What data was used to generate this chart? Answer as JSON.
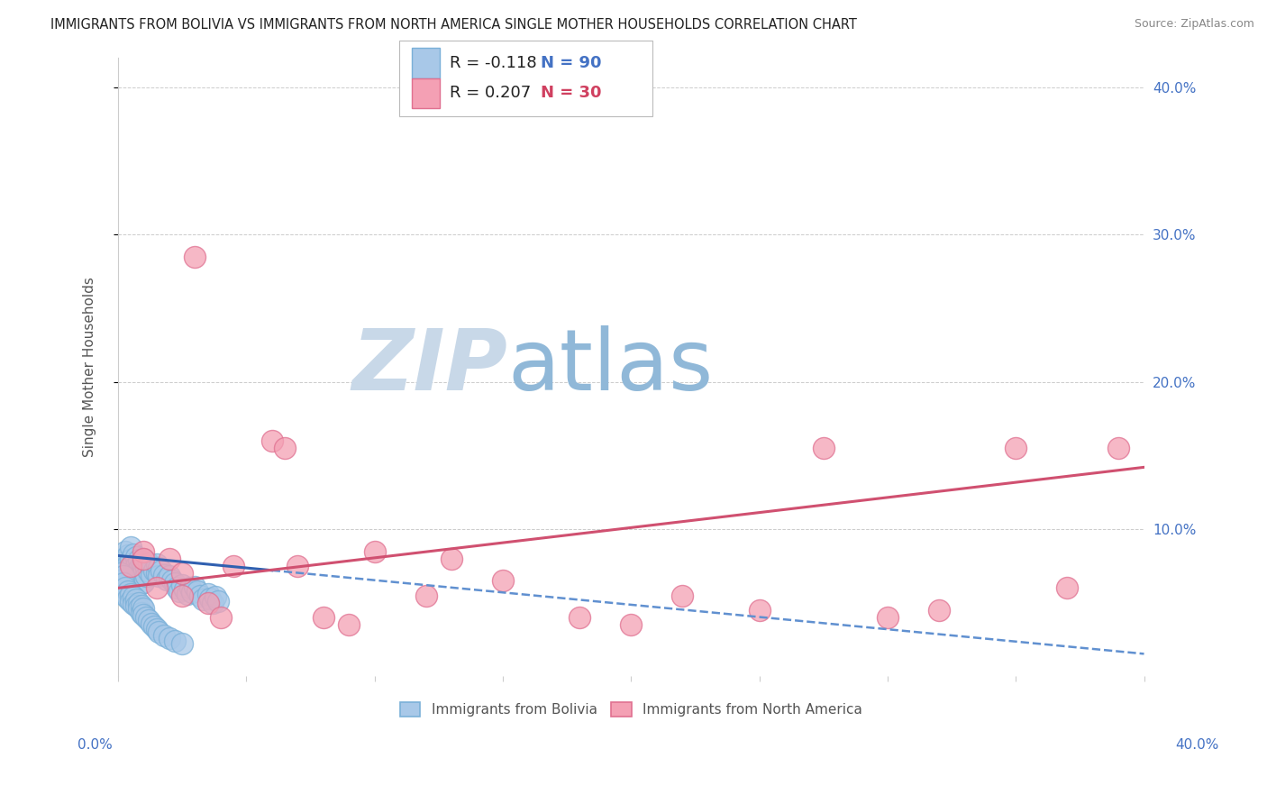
{
  "title": "IMMIGRANTS FROM BOLIVIA VS IMMIGRANTS FROM NORTH AMERICA SINGLE MOTHER HOUSEHOLDS CORRELATION CHART",
  "source": "Source: ZipAtlas.com",
  "ylabel": "Single Mother Households",
  "legend_bolivia": "Immigrants from Bolivia",
  "legend_north_america": "Immigrants from North America",
  "legend_r_bolivia": "R = -0.118",
  "legend_n_bolivia": "N = 90",
  "legend_r_north_america": "R = 0.207",
  "legend_n_north_america": "N = 30",
  "color_bolivia": "#a8c8e8",
  "color_bolivia_edge": "#7ab0d8",
  "color_north_america": "#f4a0b4",
  "color_north_america_edge": "#e07090",
  "color_bolivia_line": "#3060b0",
  "color_bolivia_dash": "#6090d0",
  "color_north_america_line": "#d05070",
  "watermark_zip_color": "#c8d8e8",
  "watermark_atlas_color": "#90b8d8",
  "background_color": "#ffffff",
  "grid_color": "#cccccc",
  "xlim": [
    0.0,
    0.4
  ],
  "ylim": [
    0.0,
    0.42
  ],
  "bolivia_x": [
    0.002,
    0.002,
    0.003,
    0.003,
    0.003,
    0.004,
    0.004,
    0.004,
    0.005,
    0.005,
    0.005,
    0.006,
    0.006,
    0.006,
    0.007,
    0.007,
    0.007,
    0.008,
    0.008,
    0.008,
    0.009,
    0.009,
    0.009,
    0.01,
    0.01,
    0.01,
    0.01,
    0.011,
    0.011,
    0.012,
    0.012,
    0.013,
    0.013,
    0.014,
    0.015,
    0.015,
    0.016,
    0.016,
    0.017,
    0.018,
    0.019,
    0.02,
    0.021,
    0.022,
    0.023,
    0.024,
    0.025,
    0.026,
    0.027,
    0.028,
    0.029,
    0.03,
    0.031,
    0.032,
    0.033,
    0.035,
    0.036,
    0.037,
    0.038,
    0.039,
    0.001,
    0.001,
    0.002,
    0.002,
    0.003,
    0.003,
    0.004,
    0.004,
    0.005,
    0.005,
    0.006,
    0.006,
    0.007,
    0.007,
    0.008,
    0.008,
    0.009,
    0.009,
    0.01,
    0.01,
    0.011,
    0.012,
    0.013,
    0.014,
    0.015,
    0.016,
    0.018,
    0.02,
    0.022,
    0.025
  ],
  "bolivia_y": [
    0.08,
    0.075,
    0.085,
    0.078,
    0.072,
    0.082,
    0.076,
    0.07,
    0.088,
    0.079,
    0.073,
    0.083,
    0.077,
    0.071,
    0.081,
    0.075,
    0.068,
    0.079,
    0.073,
    0.067,
    0.076,
    0.07,
    0.063,
    0.08,
    0.075,
    0.07,
    0.064,
    0.074,
    0.068,
    0.077,
    0.071,
    0.075,
    0.069,
    0.072,
    0.076,
    0.07,
    0.074,
    0.068,
    0.072,
    0.069,
    0.066,
    0.068,
    0.065,
    0.063,
    0.06,
    0.058,
    0.062,
    0.059,
    0.056,
    0.06,
    0.057,
    0.061,
    0.058,
    0.055,
    0.052,
    0.056,
    0.053,
    0.05,
    0.054,
    0.051,
    0.07,
    0.065,
    0.068,
    0.063,
    0.06,
    0.055,
    0.058,
    0.053,
    0.056,
    0.051,
    0.054,
    0.049,
    0.052,
    0.048,
    0.05,
    0.046,
    0.048,
    0.043,
    0.046,
    0.042,
    0.04,
    0.038,
    0.036,
    0.034,
    0.032,
    0.03,
    0.028,
    0.026,
    0.024,
    0.022
  ],
  "north_america_x": [
    0.03,
    0.005,
    0.01,
    0.015,
    0.02,
    0.025,
    0.035,
    0.04,
    0.06,
    0.065,
    0.08,
    0.09,
    0.1,
    0.12,
    0.13,
    0.15,
    0.18,
    0.2,
    0.22,
    0.25,
    0.275,
    0.3,
    0.32,
    0.35,
    0.37,
    0.39,
    0.01,
    0.025,
    0.045,
    0.07
  ],
  "north_america_y": [
    0.285,
    0.075,
    0.085,
    0.06,
    0.08,
    0.07,
    0.05,
    0.04,
    0.16,
    0.155,
    0.04,
    0.035,
    0.085,
    0.055,
    0.08,
    0.065,
    0.04,
    0.035,
    0.055,
    0.045,
    0.155,
    0.04,
    0.045,
    0.155,
    0.06,
    0.155,
    0.08,
    0.055,
    0.075,
    0.075
  ],
  "trendline_bolivia_x0": 0.0,
  "trendline_bolivia_y0": 0.082,
  "trendline_bolivia_x1": 0.06,
  "trendline_bolivia_y1": 0.072,
  "trendline_na_x0": 0.0,
  "trendline_na_y0": 0.06,
  "trendline_na_x1": 0.4,
  "trendline_na_y1": 0.142
}
